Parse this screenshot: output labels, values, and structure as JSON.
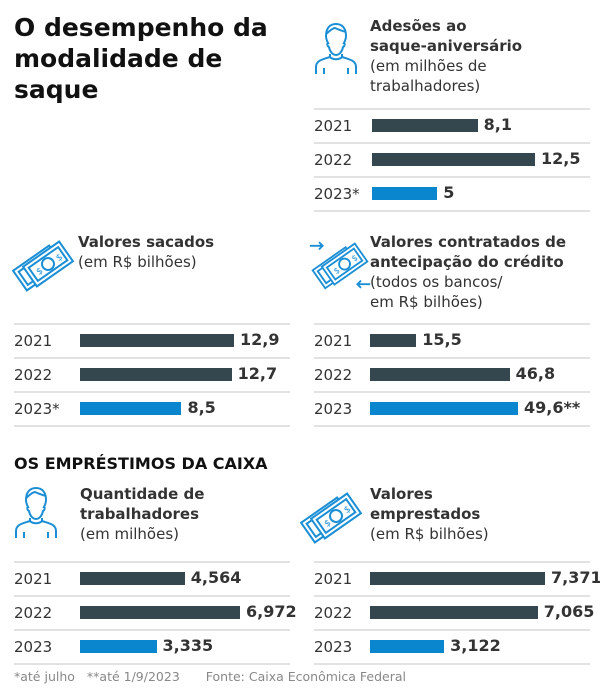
{
  "title": "O desempenho da modalidade de saque",
  "section_title": "OS EMPRÉSTIMOS DA CAIXA",
  "colors": {
    "past": "#34474f",
    "current": "#0a86cf",
    "icon": "#1b8fd6"
  },
  "footnotes": [
    "*até julho",
    "**até 1/9/2023",
    "Fonte: Caixa Econômica Federal"
  ],
  "chart_data": [
    {
      "type": "bar",
      "orientation": "horizontal",
      "icon": "person-icon",
      "title_bold": [
        "Adesões ao",
        "saque-aniversário"
      ],
      "title_sub": [
        "(em milhões de",
        "trabalhadores)"
      ],
      "categories": [
        "2021",
        "2022",
        "2023*"
      ],
      "values": [
        8.1,
        12.5,
        5
      ],
      "labels": [
        "8,1",
        "12,5",
        "5"
      ]
    },
    {
      "type": "bar",
      "orientation": "horizontal",
      "icon": "money-icon",
      "title_bold": [
        "Valores sacados"
      ],
      "title_sub": [
        "(em R$ bilhões)"
      ],
      "categories": [
        "2021",
        "2022",
        "2023*"
      ],
      "values": [
        12.9,
        12.7,
        8.5
      ],
      "labels": [
        "12,9",
        "12,7",
        "8,5"
      ]
    },
    {
      "type": "bar",
      "orientation": "horizontal",
      "icon": "money-transfer-icon",
      "title_bold": [
        "Valores contratados de",
        "antecipação do crédito"
      ],
      "title_sub": [
        "(todos os bancos/",
        "em R$ bilhões)"
      ],
      "categories": [
        "2021",
        "2022",
        "2023"
      ],
      "values": [
        15.5,
        46.8,
        49.6
      ],
      "labels": [
        "15,5",
        "46,8",
        "49,6**"
      ]
    },
    {
      "type": "bar",
      "orientation": "horizontal",
      "icon": "person-icon",
      "title_bold": [
        "Quantidade de",
        "trabalhadores"
      ],
      "title_sub": [
        "(em milhões)"
      ],
      "categories": [
        "2021",
        "2022",
        "2023"
      ],
      "values": [
        4.564,
        6.972,
        3.335
      ],
      "labels": [
        "4,564",
        "6,972",
        "3,335"
      ]
    },
    {
      "type": "bar",
      "orientation": "horizontal",
      "icon": "money-icon",
      "title_bold": [
        "Valores",
        "emprestados"
      ],
      "title_sub": [
        "(em R$ bilhões)"
      ],
      "categories": [
        "2021",
        "2022",
        "2023"
      ],
      "values": [
        7.371,
        7.065,
        3.122
      ],
      "labels": [
        "7,371",
        "7,065",
        "3,122"
      ]
    }
  ]
}
